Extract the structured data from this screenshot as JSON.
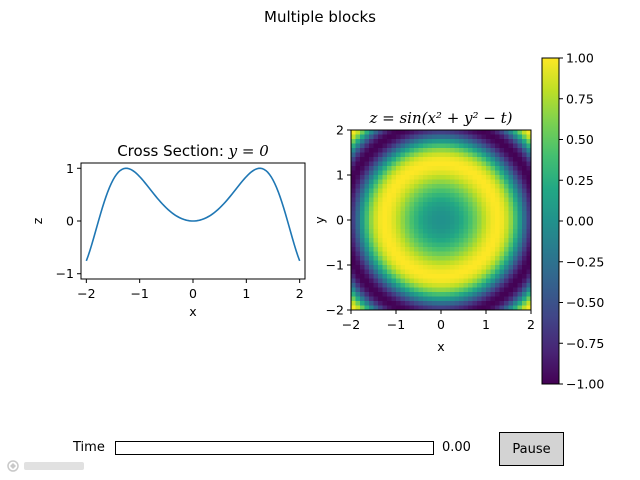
{
  "figure": {
    "suptitle": "Multiple blocks"
  },
  "controls": {
    "time_label": "Time",
    "time_value_text": "0.00",
    "time_value": 0.0,
    "pause_label": "Pause"
  },
  "colors": {
    "line": "#1f77b4",
    "slider_fill": "#1f77b4",
    "button_bg": "#d3d3d3"
  },
  "watermark": {
    "icon": "watermark-logo-icon"
  },
  "chart_data": [
    {
      "type": "line",
      "title_text": "Cross Section: ",
      "title_math": "y = 0",
      "xlabel": "x",
      "ylabel": "z",
      "xlim": [
        -2.1,
        2.1
      ],
      "ylim": [
        -1.1,
        1.1
      ],
      "xticks": [
        -2,
        -1,
        0,
        1,
        2
      ],
      "xtick_labels": [
        "−2",
        "−1",
        "0",
        "1",
        "2"
      ],
      "yticks": [
        -1,
        0,
        1
      ],
      "ytick_labels": [
        "−1",
        "0",
        "1"
      ],
      "function": "z = sin(x^2)",
      "x": [
        -2.0,
        -1.8,
        -1.6,
        -1.4,
        -1.25,
        -1.1,
        -0.9,
        -0.7,
        -0.5,
        -0.3,
        0.0,
        0.3,
        0.5,
        0.7,
        0.9,
        1.1,
        1.25,
        1.4,
        1.6,
        1.8,
        2.0
      ],
      "series": [
        {
          "values": [
            -0.757,
            -0.1,
            0.549,
            0.925,
            1.0,
            0.935,
            0.723,
            0.468,
            0.247,
            0.09,
            0.0,
            0.09,
            0.247,
            0.468,
            0.723,
            0.935,
            1.0,
            0.925,
            0.549,
            -0.1,
            -0.757
          ],
          "color": "#1f77b4"
        }
      ],
      "grid": false
    },
    {
      "type": "heatmap",
      "title_math": "z = sin(x² + y² − t)",
      "xlabel": "x",
      "ylabel": "y",
      "xlim": [
        -2,
        2
      ],
      "ylim": [
        -2,
        2
      ],
      "xticks": [
        -2,
        -1,
        0,
        1,
        2
      ],
      "xtick_labels": [
        "−2",
        "−1",
        "0",
        "1",
        "2"
      ],
      "yticks": [
        -2,
        -1,
        0,
        1,
        2
      ],
      "ytick_labels": [
        "−2",
        "−1",
        "0",
        "1",
        "2"
      ],
      "grid_size": 40,
      "function": "z = sin(x^2 + y^2 - t)",
      "t": 0.0,
      "colormap": "viridis",
      "grid": false,
      "colorbar": {
        "vmin": -1.0,
        "vmax": 1.0,
        "ticks": [
          1.0,
          0.75,
          0.5,
          0.25,
          0.0,
          -0.25,
          -0.5,
          -0.75,
          -1.0
        ],
        "tick_labels": [
          "1.00",
          "0.75",
          "0.50",
          "0.25",
          "0.00",
          "−0.25",
          "−0.50",
          "−0.75",
          "−1.00"
        ]
      }
    }
  ]
}
